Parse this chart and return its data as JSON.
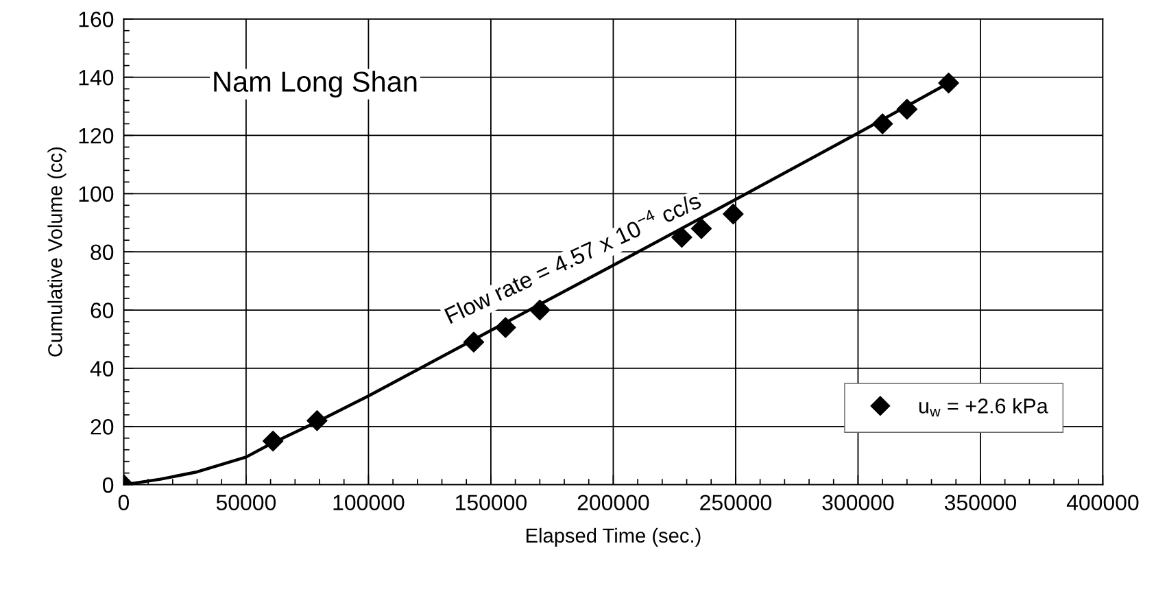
{
  "chart_data": {
    "type": "scatter",
    "xlabel": "Elapsed Time (sec.)",
    "ylabel": "Cumulative Volume (cc)",
    "series": [
      {
        "name": "u$_{w}$ = +2.6 kPa",
        "color": "#000000",
        "marker": "diamond",
        "x": [
          0,
          61000,
          79000,
          143000,
          156000,
          170000,
          228000,
          236000,
          249000,
          310000,
          320000,
          337000
        ],
        "values": [
          0,
          15,
          22,
          49,
          54,
          60,
          85,
          88,
          93,
          124,
          129,
          138
        ]
      },
      {
        "type": "line",
        "color": "#000000",
        "marker": "none",
        "line_style": "solid",
        "x": [
          0,
          15000,
          30000,
          50000,
          60000,
          80000,
          100000,
          150000,
          200000,
          250000,
          300000,
          337000
        ],
        "values": [
          0,
          1.9,
          4.4,
          9.5,
          14,
          22,
          30.5,
          53,
          75.4,
          98,
          120.8,
          138
        ]
      }
    ],
    "annotations": [
      "Nam Long Shan",
      "Flow rate = 4.57 x 10$^{−4}$ cc/s"
    ],
    "xlim": [
      0,
      400000
    ],
    "xticks": [
      0,
      50000,
      100000,
      150000,
      200000,
      250000,
      300000,
      350000,
      400000
    ],
    "ylim": [
      0,
      160
    ],
    "yticks": [
      0,
      20,
      40,
      60,
      80,
      100,
      120,
      140,
      160
    ],
    "grid": true,
    "legend": "bottom right"
  }
}
